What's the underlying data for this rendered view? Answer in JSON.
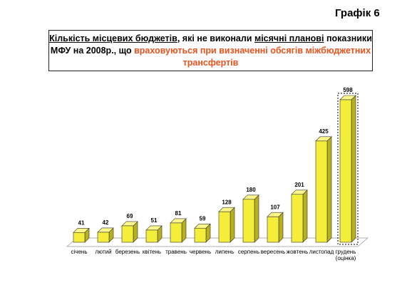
{
  "label": "Графік 6",
  "chart_data": {
    "type": "bar3d",
    "title": [
      "Кількість місцевих бюджетів",
      ", які не виконали ",
      "місячні планові",
      " показники МФУ на 2008р., що ",
      "враховуються при визначенні обсягів міжбюджетних трансфертів"
    ],
    "categories": [
      "січень",
      "лютий",
      "березень",
      "квітень",
      "травень",
      "червень",
      "липень",
      "серпень",
      "вересень",
      "жовтень",
      "листопад",
      "грудень (оцінка)"
    ],
    "values": [
      41,
      42,
      69,
      51,
      81,
      59,
      128,
      180,
      107,
      201,
      425,
      598
    ],
    "color": "#f4ee3a"
  }
}
